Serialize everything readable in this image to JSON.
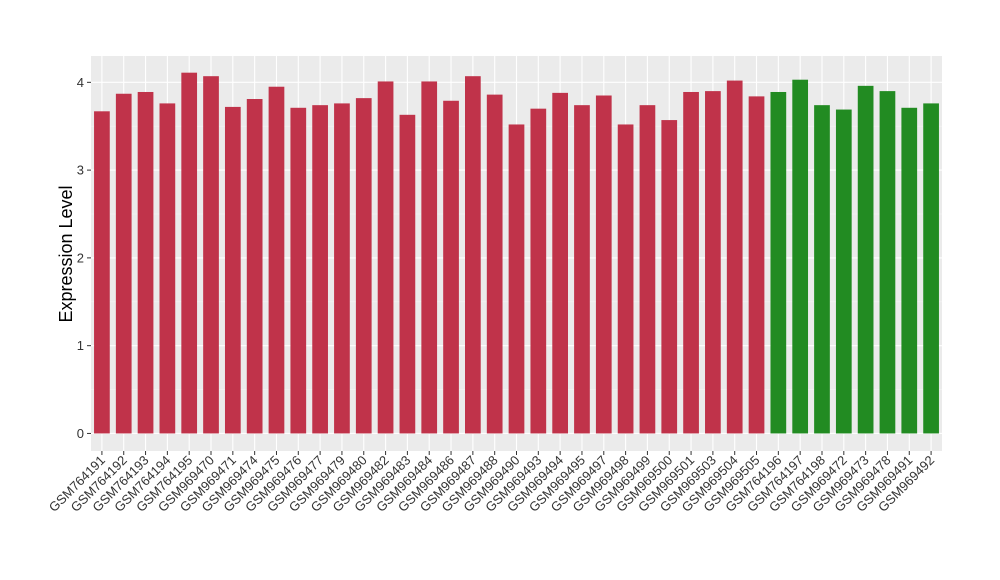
{
  "chart_data": {
    "type": "bar",
    "title": "",
    "xlabel": "",
    "ylabel": "Expression Level",
    "ylim": [
      -0.2,
      4.3
    ],
    "yticks": [
      0,
      1,
      2,
      3,
      4
    ],
    "grid": true,
    "panel_background": "#EBEBEB",
    "categories": [
      "GSM764191",
      "GSM764192",
      "GSM764193",
      "GSM764194",
      "GSM764195",
      "GSM969470",
      "GSM969471",
      "GSM969474",
      "GSM969475",
      "GSM969476",
      "GSM969477",
      "GSM969479",
      "GSM969480",
      "GSM969482",
      "GSM969483",
      "GSM969484",
      "GSM969486",
      "GSM969487",
      "GSM969488",
      "GSM969490",
      "GSM969493",
      "GSM969494",
      "GSM969495",
      "GSM969497",
      "GSM969498",
      "GSM969499",
      "GSM969500",
      "GSM969501",
      "GSM969503",
      "GSM969504",
      "GSM969505",
      "GSM764196",
      "GSM764197",
      "GSM764198",
      "GSM969472",
      "GSM969473",
      "GSM969478",
      "GSM969491",
      "GSM969492"
    ],
    "values": [
      3.67,
      3.87,
      3.89,
      3.76,
      4.11,
      4.07,
      3.72,
      3.81,
      3.95,
      3.71,
      3.74,
      3.76,
      3.82,
      4.01,
      3.63,
      4.01,
      3.79,
      4.07,
      3.86,
      3.52,
      3.7,
      3.88,
      3.74,
      3.85,
      3.52,
      3.74,
      3.57,
      3.89,
      3.9,
      4.02,
      3.84,
      3.89,
      4.03,
      3.74,
      3.69,
      3.96,
      3.9,
      3.71,
      3.76
    ],
    "bar_colors": [
      "#C0334A",
      "#C0334A",
      "#C0334A",
      "#C0334A",
      "#C0334A",
      "#C0334A",
      "#C0334A",
      "#C0334A",
      "#C0334A",
      "#C0334A",
      "#C0334A",
      "#C0334A",
      "#C0334A",
      "#C0334A",
      "#C0334A",
      "#C0334A",
      "#C0334A",
      "#C0334A",
      "#C0334A",
      "#C0334A",
      "#C0334A",
      "#C0334A",
      "#C0334A",
      "#C0334A",
      "#C0334A",
      "#C0334A",
      "#C0334A",
      "#C0334A",
      "#C0334A",
      "#C0334A",
      "#C0334A",
      "#228B22",
      "#228B22",
      "#228B22",
      "#228B22",
      "#228B22",
      "#228B22",
      "#228B22",
      "#228B22"
    ]
  }
}
